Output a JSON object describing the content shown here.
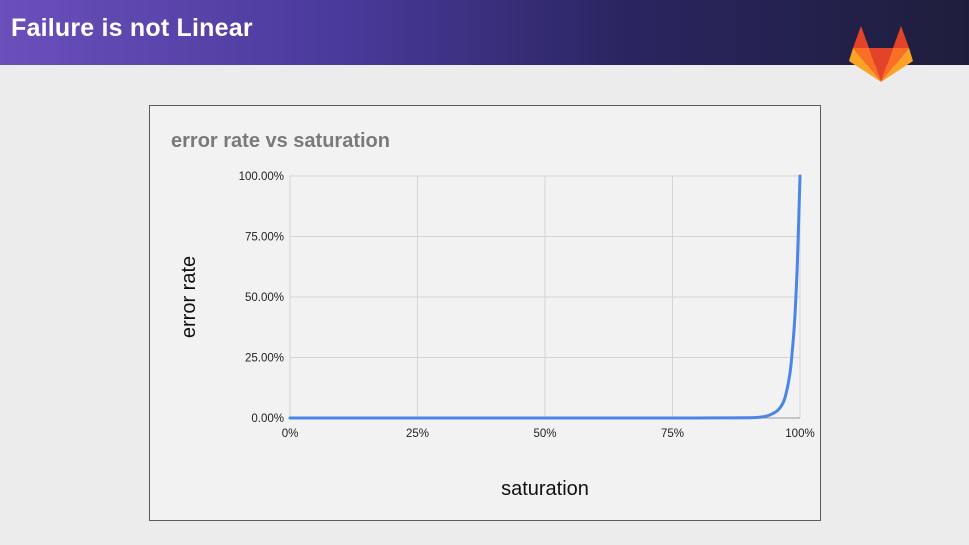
{
  "slide": {
    "title": "Failure is not Linear"
  },
  "logo": {
    "icon": "gitlab-tanuki-icon",
    "colors": [
      "#e24329",
      "#fc6d26",
      "#fca326"
    ]
  },
  "colors": {
    "header_start": "#6b4fbb",
    "header_end": "#1e1e3c",
    "line": "#4a86e8",
    "grid": "#d4d4d4"
  },
  "chart_data": {
    "type": "line",
    "title": "error rate vs saturation",
    "xlabel": "saturation",
    "ylabel": "error rate",
    "xlim": [
      0,
      1
    ],
    "ylim": [
      0,
      1
    ],
    "x_ticks": [
      "0%",
      "25%",
      "50%",
      "75%",
      "100%"
    ],
    "y_ticks": [
      "0.00%",
      "25.00%",
      "50.00%",
      "75.00%",
      "100.00%"
    ],
    "grid": true,
    "legend": "none",
    "series": [
      {
        "x": [
          0,
          0.1,
          0.2,
          0.3,
          0.4,
          0.5,
          0.6,
          0.7,
          0.8,
          0.85,
          0.9,
          0.92,
          0.93,
          0.94,
          0.95,
          0.96,
          0.97,
          0.98,
          0.985,
          0.99,
          0.995,
          1.0
        ],
        "y": [
          0,
          0,
          0,
          0,
          0,
          0,
          0,
          0,
          0,
          0.0005,
          0.001,
          0.003,
          0.006,
          0.012,
          0.022,
          0.04,
          0.08,
          0.18,
          0.28,
          0.42,
          0.65,
          1.0
        ]
      }
    ]
  }
}
